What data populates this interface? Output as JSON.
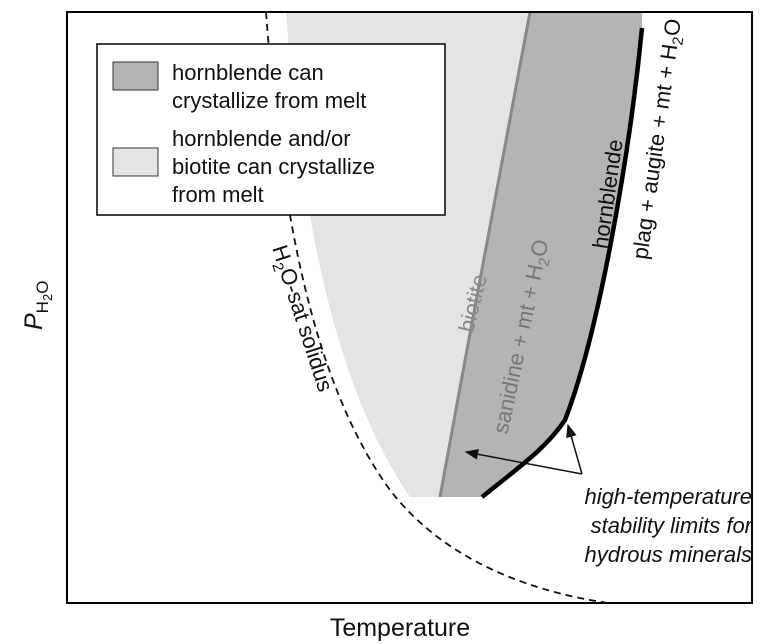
{
  "x_label": "Temperature",
  "y_label": {
    "main": "P",
    "sub": [
      "H",
      "2",
      "O"
    ]
  },
  "legend": [
    {
      "lines": [
        "hornblende can",
        "crystallize from melt"
      ]
    },
    {
      "lines": [
        "hornblende and/or",
        "biotite can crystallize",
        "from melt"
      ]
    }
  ],
  "labels": {
    "solidus": [
      "H",
      "2",
      "O-sat solidus"
    ],
    "biotite": "biotite",
    "biotite_reaction": [
      "sanidine + mt + H",
      "2",
      "O"
    ],
    "hornblende": "hornblende",
    "hornblende_reaction": [
      "plag + augite + mt + H",
      "2",
      "O"
    ]
  },
  "annotation": [
    "high-temperature",
    "stability limits for",
    "hydrous minerals"
  ]
}
